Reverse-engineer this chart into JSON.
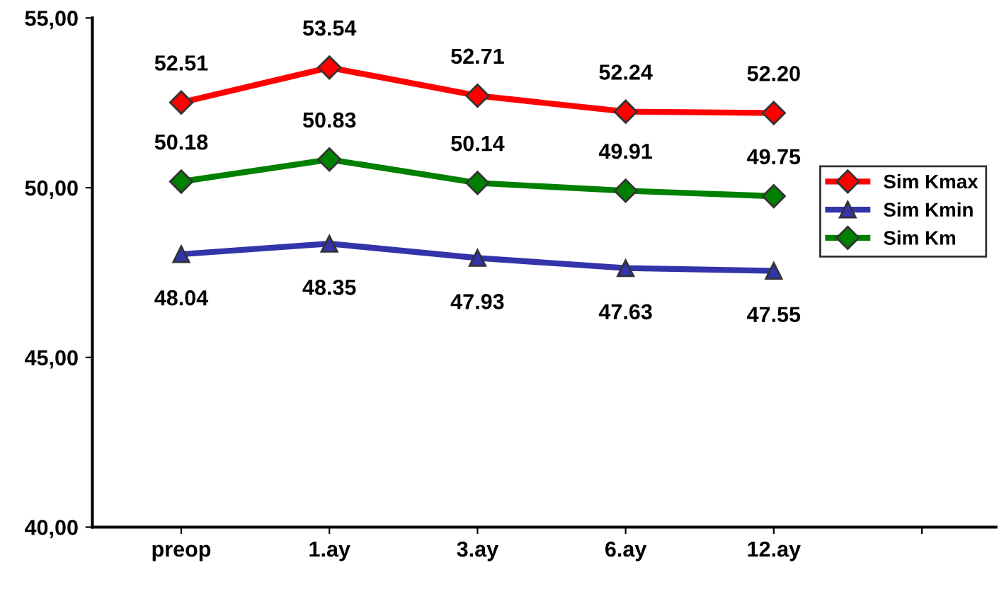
{
  "chart_data": {
    "type": "line",
    "categories": [
      "preop",
      "1.ay",
      "3.ay",
      "6.ay",
      "12.ay",
      null
    ],
    "series": [
      {
        "name": "Sim Kmax",
        "color": "#ff0000",
        "marker": "diamond",
        "values": [
          52.51,
          53.54,
          52.71,
          52.24,
          52.2,
          null
        ],
        "value_labels": [
          "52.51",
          "53.54",
          "52.71",
          "52.24",
          "52.20",
          null
        ]
      },
      {
        "name": "Sim Kmin",
        "color": "#3333aa",
        "marker": "triangle",
        "values": [
          48.04,
          48.35,
          47.93,
          47.63,
          47.55,
          null
        ],
        "value_labels": [
          "48.04",
          "48.35",
          "47.93",
          "47.63",
          "47.55",
          null
        ]
      },
      {
        "name": "Sim Km",
        "color": "#008000",
        "marker": "diamond",
        "values": [
          50.18,
          50.83,
          50.14,
          49.91,
          49.75,
          null
        ],
        "value_labels": [
          "50.18",
          "50.83",
          "50.14",
          "49.91",
          "49.75",
          null
        ]
      }
    ],
    "ylim": [
      40,
      55
    ],
    "yticks": [
      {
        "value": 40,
        "label": "40,00"
      },
      {
        "value": 45,
        "label": "45,00"
      },
      {
        "value": 50,
        "label": "50,00"
      },
      {
        "value": 55,
        "label": "55,00"
      }
    ],
    "grid": false,
    "legend": "right"
  }
}
